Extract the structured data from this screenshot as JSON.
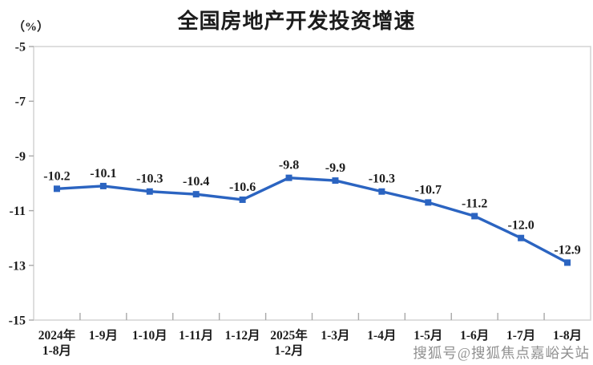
{
  "page": {
    "background": "#ffffff"
  },
  "chart_data": {
    "type": "line",
    "title": "全国房地产开发投资增速",
    "ylabel": "（%）",
    "xlabel": "",
    "categories": [
      "2024年\n1-8月",
      "1-9月",
      "1-10月",
      "1-11月",
      "1-12月",
      "2025年\n1-2月",
      "1-3月",
      "1-4月",
      "1-5月",
      "1-6月",
      "1-7月",
      "1-8月"
    ],
    "values": [
      -10.2,
      -10.1,
      -10.3,
      -10.4,
      -10.6,
      -9.8,
      -9.9,
      -10.3,
      -10.7,
      -11.2,
      -12.0,
      -12.9
    ],
    "point_labels": [
      "-10.2",
      "-10.1",
      "-10.3",
      "-10.4",
      "-10.6",
      "-9.8",
      "-9.9",
      "-10.3",
      "-10.7",
      "-11.2",
      "-12.0",
      "-12.9"
    ],
    "ylim": [
      -15,
      -5
    ],
    "yticks": [
      -5,
      -7,
      -9,
      -11,
      -13,
      -15
    ],
    "grid": false,
    "legend_position": "none",
    "marker": "square",
    "colors": {
      "line": "#2b64c1",
      "border": "#d6d6d6",
      "axis": "#b9b9b9",
      "tick": "#a8a8a8",
      "text": "#1c1c1c"
    }
  },
  "watermark": {
    "text": "搜狐号@搜狐焦点嘉峪关站"
  }
}
